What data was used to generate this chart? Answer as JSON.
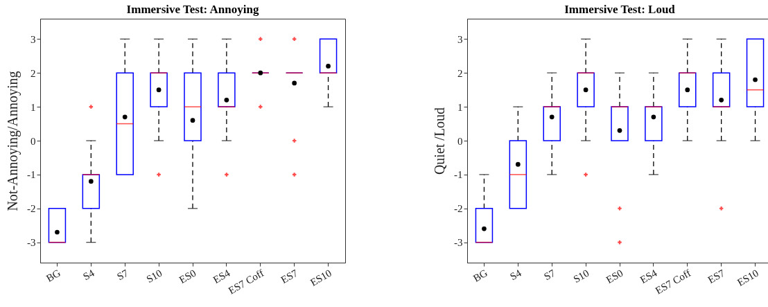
{
  "chart_data": [
    {
      "type": "box",
      "title": "Immersive Test: Annoying",
      "ylabel": "Not-Annoying/Annoying",
      "categories": [
        "BG",
        "S4",
        "S7",
        "S10",
        "ES0",
        "ES4",
        "ES7 Coff",
        "ES7",
        "ES10"
      ],
      "ylim": [
        -3.6,
        3.6
      ],
      "yticks": [
        -3,
        -2,
        -1,
        0,
        1,
        2,
        3
      ],
      "grid": false,
      "boxes": [
        {
          "low": -3,
          "q1": -3,
          "median": -3,
          "q3": -2,
          "high": -2,
          "mean": -2.7
        },
        {
          "low": -3,
          "q1": -2,
          "median": -1,
          "q3": -1,
          "high": 0,
          "mean": -1.2,
          "outliers": [
            1
          ]
        },
        {
          "low": -1,
          "q1": -1,
          "median": 0.5,
          "q3": 2,
          "high": 3,
          "mean": 0.7
        },
        {
          "low": 0,
          "q1": 1,
          "median": 2,
          "q3": 2,
          "high": 3,
          "mean": 1.5,
          "outliers": [
            -1
          ]
        },
        {
          "low": -2,
          "q1": 0,
          "median": 1,
          "q3": 2,
          "high": 3,
          "mean": 0.6
        },
        {
          "low": 0,
          "q1": 1,
          "median": 1,
          "q3": 2,
          "high": 3,
          "mean": 1.2,
          "outliers": [
            -1
          ]
        },
        {
          "low": 2,
          "q1": 2,
          "median": 2,
          "q3": 2,
          "high": 2,
          "mean": 2,
          "outliers": [
            3,
            1
          ]
        },
        {
          "low": 2,
          "q1": 2,
          "median": 2,
          "q3": 2,
          "high": 2,
          "mean": 1.7,
          "outliers": [
            3,
            0,
            -1
          ]
        },
        {
          "low": 1,
          "q1": 2,
          "median": 2,
          "q3": 3,
          "high": 3,
          "mean": 2.2
        }
      ]
    },
    {
      "type": "box",
      "title": "Immersive Test: Loud",
      "ylabel": "Quiet /Loud",
      "categories": [
        "BG",
        "S4",
        "S7",
        "S10",
        "ES0",
        "ES4",
        "ES7 Coff",
        "ES7",
        "ES10"
      ],
      "ylim": [
        -3.6,
        3.6
      ],
      "yticks": [
        -3,
        -2,
        -1,
        0,
        1,
        2,
        3
      ],
      "grid": false,
      "boxes": [
        {
          "low": -3,
          "q1": -3,
          "median": -3,
          "q3": -2,
          "high": -1,
          "mean": -2.6
        },
        {
          "low": -2,
          "q1": -2,
          "median": -1,
          "q3": 0,
          "high": 1,
          "mean": -0.7
        },
        {
          "low": -1,
          "q1": 0,
          "median": 1,
          "q3": 1,
          "high": 2,
          "mean": 0.7
        },
        {
          "low": 0,
          "q1": 1,
          "median": 2,
          "q3": 2,
          "high": 3,
          "mean": 1.5,
          "outliers": [
            -1
          ]
        },
        {
          "low": 0,
          "q1": 0,
          "median": 1,
          "q3": 1,
          "high": 2,
          "mean": 0.3,
          "outliers": [
            -2,
            -3
          ]
        },
        {
          "low": -1,
          "q1": 0,
          "median": 1,
          "q3": 1,
          "high": 2,
          "mean": 0.7
        },
        {
          "low": 0,
          "q1": 1,
          "median": 2,
          "q3": 2,
          "high": 3,
          "mean": 1.5
        },
        {
          "low": 0,
          "q1": 1,
          "median": 1,
          "q3": 2,
          "high": 3,
          "mean": 1.2,
          "outliers": [
            -2
          ]
        },
        {
          "low": 0,
          "q1": 1,
          "median": 1.5,
          "q3": 3,
          "high": 3,
          "mean": 1.8
        }
      ]
    }
  ]
}
